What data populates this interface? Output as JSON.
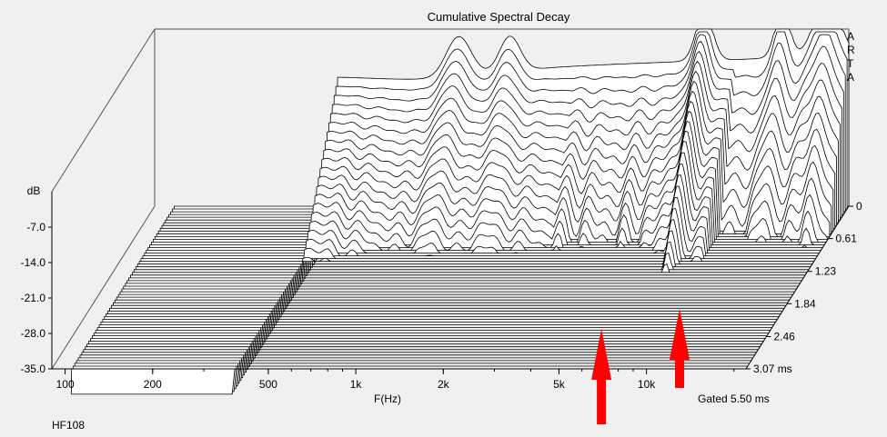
{
  "chart_data": {
    "type": "area",
    "title": "Cumulative Spectral Decay",
    "xlabel": "F(Hz)",
    "ylabel": "dB",
    "zlabel": "ms",
    "x_scale": "log",
    "xlim": [
      90,
      22000
    ],
    "ylim": [
      -35,
      0
    ],
    "zlim": [
      0,
      3.07
    ],
    "x_ticks": [
      100,
      200,
      500,
      1000,
      2000,
      5000,
      10000
    ],
    "x_tick_labels": [
      "100",
      "200",
      "500",
      "1k",
      "2k",
      "5k",
      "10k"
    ],
    "y_ticks": [
      -7.0,
      -14.0,
      -21.0,
      -28.0,
      -35.0
    ],
    "y_tick_labels": [
      "-7.0",
      "-14.0",
      "-21.0",
      "-28.0",
      "-35.0"
    ],
    "z_ticks": [
      0,
      0.61,
      1.23,
      1.84,
      2.46,
      3.07
    ],
    "z_tick_labels": [
      "0",
      "0.61",
      "1.23",
      "1.84",
      "2.46",
      "3.07 ms"
    ],
    "slice_count": 60,
    "grid": false,
    "line_color": "#000000",
    "fill_color": "#ffffff",
    "background": "#f0f0f0",
    "annotations": {
      "brand": [
        "A",
        "R",
        "T",
        "A"
      ],
      "gate": "Gated 5.50 ms",
      "device": "HF108"
    },
    "markers": [
      {
        "name": "arrow-7khz",
        "x": 7000,
        "color": "#ff0000"
      },
      {
        "name": "arrow-13khz",
        "x": 13000,
        "color": "#ff0000"
      }
    ]
  }
}
